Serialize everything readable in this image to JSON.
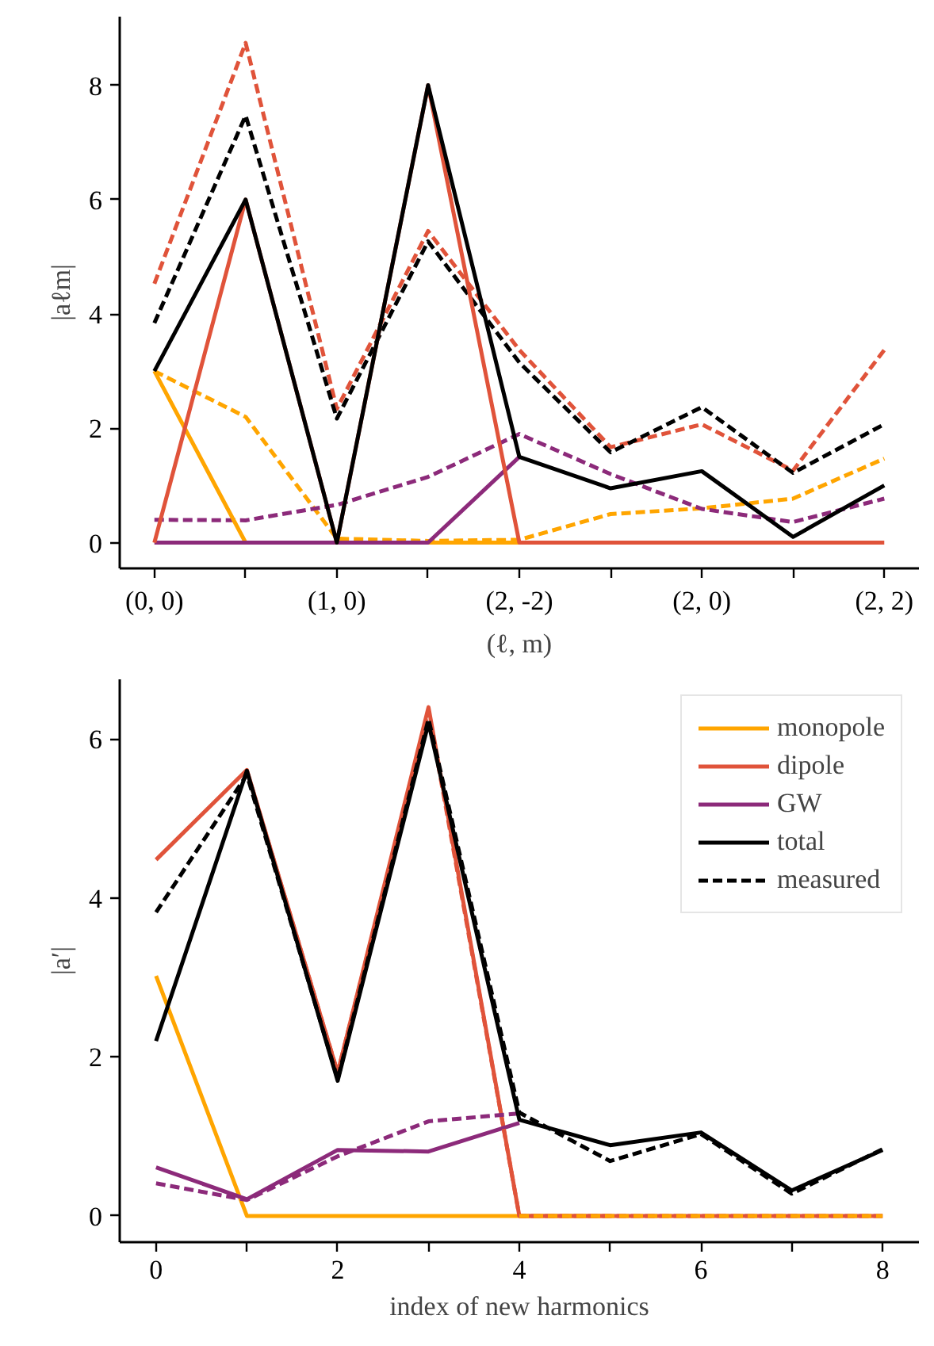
{
  "chart_data": [
    {
      "type": "line",
      "xlabel": "(ℓ, m)",
      "ylabel": "|aℓm|",
      "categories": [
        "(0, 0)",
        null,
        "(1, 0)",
        null,
        "(2, -2)",
        null,
        "(2, 0)",
        null,
        "(2, 2)"
      ],
      "ylim": [
        -0.45,
        9.2
      ],
      "yticks": [
        0,
        2,
        4,
        6,
        8
      ],
      "grid": false,
      "legend": false,
      "series": [
        {
          "color": "#ffa500",
          "line_style": "dashed",
          "values": [
            3.0,
            2.2,
            0.07,
            0.03,
            0.05,
            0.5,
            0.6,
            0.77,
            1.47
          ]
        },
        {
          "color": "#e0533a",
          "line_style": "dashed",
          "values": [
            4.53,
            8.74,
            2.34,
            5.45,
            3.37,
            1.67,
            2.07,
            1.26,
            3.37
          ]
        },
        {
          "color": "#8c2a7a",
          "line_style": "dashed",
          "values": [
            0.4,
            0.39,
            0.66,
            1.15,
            1.9,
            1.2,
            0.59,
            0.36,
            0.77
          ]
        },
        {
          "color": "#000000",
          "line_style": "dashed",
          "values": [
            3.84,
            7.47,
            2.17,
            5.27,
            3.15,
            1.58,
            2.37,
            1.22,
            2.07
          ]
        },
        {
          "color": "#ffa500",
          "line_style": "solid",
          "values": [
            3,
            0,
            0,
            0,
            0,
            0,
            null,
            null,
            null
          ]
        },
        {
          "color": "#8c2a7a",
          "line_style": "solid",
          "values": [
            0,
            0,
            0,
            0,
            1.5,
            null,
            null,
            null,
            null
          ]
        },
        {
          "color": "#e0533a",
          "line_style": "solid",
          "values": [
            0,
            6,
            0,
            8,
            0,
            0,
            0,
            0,
            0
          ]
        },
        {
          "color": "#000000",
          "line_style": "solid",
          "values": [
            3,
            6,
            0,
            8,
            1.5,
            0.95,
            1.25,
            0.1,
            1.0
          ]
        }
      ]
    },
    {
      "type": "line",
      "xlabel": "index of new harmonics",
      "ylabel": "|a′|",
      "x": [
        0,
        1,
        2,
        3,
        4,
        5,
        6,
        7,
        8
      ],
      "xlim": [
        -0.4,
        8.4
      ],
      "xticks": [
        0,
        {
          "value": 1,
          "label": null
        },
        2,
        {
          "value": 3,
          "label": null
        },
        4,
        {
          "value": 5,
          "label": null
        },
        6,
        {
          "value": 7,
          "label": null
        },
        8
      ],
      "ylim": [
        -0.33,
        6.75
      ],
      "yticks": [
        0,
        2,
        4,
        6
      ],
      "grid": false,
      "legend": "top right",
      "series": [
        {
          "name": "monopole",
          "color": "#ffa500",
          "line_style": "solid",
          "values": [
            3.02,
            0,
            0,
            0,
            0,
            0,
            null,
            null,
            null
          ]
        },
        {
          "name": "dipole",
          "color": "#e0533a",
          "line_style": "solid",
          "values": [
            4.48,
            5.61,
            1.8,
            6.4,
            0,
            0,
            0,
            0,
            0
          ]
        },
        {
          "name": "GW",
          "color": "#8c2a7a",
          "line_style": "solid",
          "values": [
            0.61,
            0.21,
            0.83,
            0.81,
            1.17,
            null,
            null,
            null,
            null
          ]
        },
        {
          "color": "#e0533a",
          "line_style": "dashed",
          "values": [
            null,
            5.6,
            1.8,
            6.35,
            0,
            0,
            0,
            0,
            0
          ]
        },
        {
          "color": "#ffa500",
          "line_style": "dashed",
          "values": [
            null,
            null,
            null,
            null,
            0,
            0,
            0,
            0,
            0
          ]
        },
        {
          "color": "#8c2a7a",
          "line_style": "dashed",
          "values": [
            0.41,
            0.2,
            0.75,
            1.19,
            1.29,
            null,
            null,
            null,
            null
          ]
        },
        {
          "name": "total",
          "color": "#000000",
          "line_style": "solid",
          "values": [
            2.2,
            5.6,
            1.7,
            6.2,
            1.21,
            0.89,
            1.05,
            0.32,
            0.83
          ]
        },
        {
          "name": "measured",
          "color": "#000000",
          "line_style": "dashed",
          "values": [
            3.82,
            5.55,
            1.72,
            6.25,
            1.3,
            0.69,
            1.03,
            0.28,
            0.84
          ]
        }
      ]
    }
  ]
}
